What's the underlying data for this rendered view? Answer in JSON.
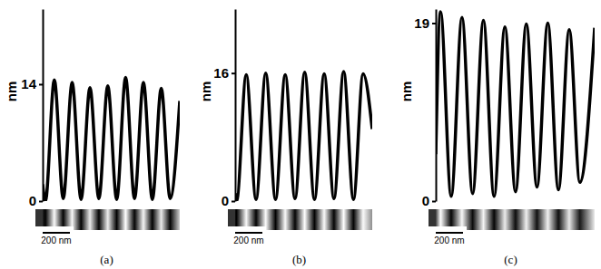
{
  "chart_data": [
    {
      "type": "line",
      "title": "(a)",
      "y_label": "nm",
      "annotations": [
        "200 nm"
      ],
      "x": [
        0,
        20,
        85,
        150,
        215,
        280,
        345,
        410,
        475,
        540,
        605,
        670,
        735,
        800,
        865,
        930,
        1000
      ],
      "series": [
        {
          "color": "#000000",
          "values": [
            2,
            0,
            14.5,
            0.3,
            14.2,
            0.2,
            13.6,
            0.3,
            13.8,
            0.2,
            14.8,
            0.3,
            14.2,
            0.2,
            13.5,
            0.3,
            12
          ]
        }
      ],
      "xlim": [
        0,
        1000
      ],
      "ylim": [
        0,
        23
      ],
      "yticks": [
        0,
        14
      ],
      "tick_labels": "y"
    },
    {
      "type": "line",
      "title": "(b)",
      "y_label": "nm",
      "annotations": [
        "200 nm"
      ],
      "x": [
        0,
        10,
        77,
        145,
        212,
        280,
        347,
        415,
        482,
        550,
        617,
        685,
        752,
        820,
        887,
        950
      ],
      "series": [
        {
          "color": "#000000",
          "values": [
            1,
            0,
            15.8,
            0.2,
            16.0,
            0.2,
            15.8,
            0.3,
            16.1,
            0.2,
            15.9,
            0.3,
            16.2,
            0.2,
            15.9,
            9
          ]
        }
      ],
      "xlim": [
        0,
        950
      ],
      "ylim": [
        0,
        24
      ],
      "yticks": [
        0,
        16
      ],
      "tick_labels": "y"
    },
    {
      "type": "line",
      "title": "(c)",
      "y_label": "nm",
      "annotations": [
        "200 nm"
      ],
      "x": [
        0,
        30,
        97,
        165,
        232,
        300,
        367,
        435,
        502,
        570,
        637,
        705,
        772,
        840,
        907,
        1000
      ],
      "series": [
        {
          "color": "#000000",
          "values": [
            5,
            20.2,
            0.5,
            19.6,
            0.8,
            19.3,
            0.5,
            18.6,
            1.0,
            18.9,
            1.5,
            19.0,
            1.2,
            18.3,
            2.0,
            18.5
          ]
        }
      ],
      "xlim": [
        0,
        1000
      ],
      "ylim": [
        0,
        20.5
      ],
      "yticks": [
        0,
        19
      ],
      "tick_labels": "y"
    }
  ]
}
